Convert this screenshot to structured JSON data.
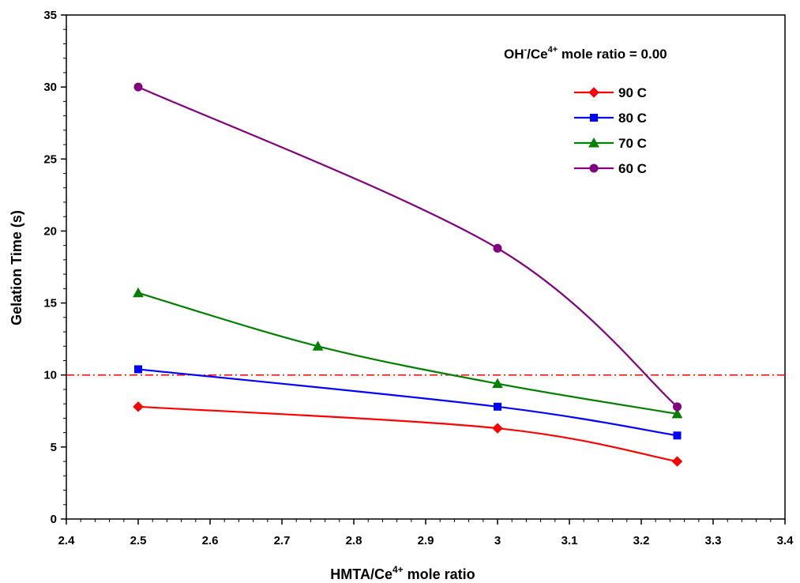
{
  "chart_data": {
    "type": "line",
    "title": "",
    "annotation": {
      "prefix": "OH",
      "sup1": "-",
      "mid": "/Ce",
      "sup2": "4+",
      "suffix": " mole ratio = 0.00"
    },
    "xlabel": {
      "main": "HMTA/Ce",
      "sup": "4+",
      "tail": " mole ratio"
    },
    "ylabel": "Gelation Time (s)",
    "xlim": [
      2.4,
      3.4
    ],
    "ylim": [
      0,
      35
    ],
    "x_ticks": [
      "2.4",
      "2.5",
      "2.6",
      "2.7",
      "2.8",
      "2.9",
      "3",
      "3.1",
      "3.2",
      "3.3",
      "3.4"
    ],
    "y_ticks": [
      "0",
      "5",
      "10",
      "15",
      "20",
      "25",
      "30",
      "35"
    ],
    "grid": false,
    "legend_position": "top-right",
    "reference_line": {
      "y": 10,
      "color": "#ff0000",
      "style": "dash-dot"
    },
    "series": [
      {
        "name": "90 C",
        "color": "#ff0000",
        "marker": "diamond",
        "points": [
          [
            2.5,
            7.8
          ],
          [
            3.0,
            6.3
          ],
          [
            3.25,
            4.0
          ]
        ]
      },
      {
        "name": "80 C",
        "color": "#0000ff",
        "marker": "square",
        "points": [
          [
            2.5,
            10.4
          ],
          [
            3.0,
            7.8
          ],
          [
            3.25,
            5.8
          ]
        ]
      },
      {
        "name": "70 C",
        "color": "#008000",
        "marker": "triangle",
        "points": [
          [
            2.5,
            15.7
          ],
          [
            2.75,
            12.0
          ],
          [
            3.0,
            9.4
          ],
          [
            3.25,
            7.3
          ]
        ]
      },
      {
        "name": "60 C",
        "color": "#800080",
        "marker": "circle",
        "points": [
          [
            2.5,
            30.0
          ],
          [
            3.0,
            18.8
          ],
          [
            3.25,
            7.8
          ]
        ]
      }
    ]
  }
}
